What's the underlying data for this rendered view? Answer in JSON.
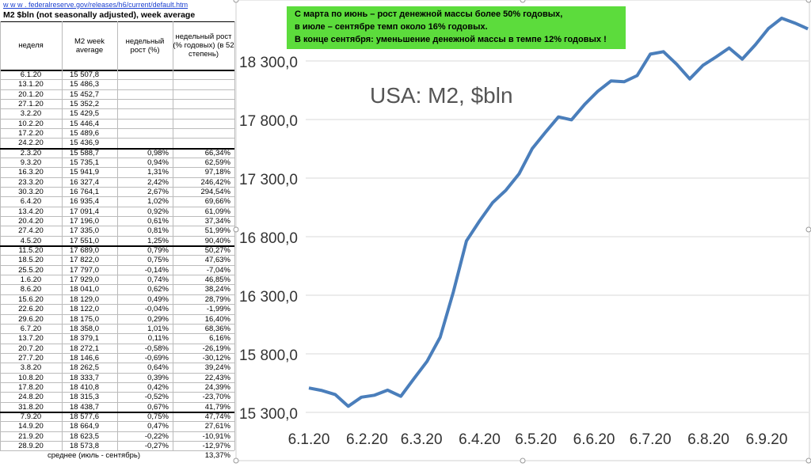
{
  "link": "w w w . federalreserve.gov/releases/h6/current/default.htm",
  "table": {
    "title": "M2 $bln (not seasonally adjusted), week average",
    "headers": [
      "неделя",
      "M2 week average",
      "недельный рост (%)",
      "недельный рост (% годовых) (в 52 степень)"
    ],
    "rows": [
      [
        "6.1.20",
        "15 507,8"
      ],
      [
        "13.1.20",
        "15 486,3"
      ],
      [
        "20.1.20",
        "15 452,7"
      ],
      [
        "27.1.20",
        "15 352,2"
      ],
      [
        "3.2.20",
        "15 429,5"
      ],
      [
        "10.2.20",
        "15 446,4"
      ],
      [
        "17.2.20",
        "15 489,6"
      ],
      [
        "24.2.20",
        "15 436,9"
      ],
      [
        "2.3.20",
        "15 588,7",
        "0,98%",
        "66,34%"
      ],
      [
        "9.3.20",
        "15 735,1",
        "0,94%",
        "62,59%"
      ],
      [
        "16.3.20",
        "15 941,9",
        "1,31%",
        "97,18%"
      ],
      [
        "23.3.20",
        "16 327,4",
        "2,42%",
        "246,42%"
      ],
      [
        "30.3.20",
        "16 764,1",
        "2,67%",
        "294,54%"
      ],
      [
        "6.4.20",
        "16 935,4",
        "1,02%",
        "69,66%"
      ],
      [
        "13.4.20",
        "17 091,4",
        "0,92%",
        "61,09%"
      ],
      [
        "20.4.20",
        "17 196,0",
        "0,61%",
        "37,34%"
      ],
      [
        "27.4.20",
        "17 335,0",
        "0,81%",
        "51,99%"
      ],
      [
        "4.5.20",
        "17 551,0",
        "1,25%",
        "90,40%"
      ],
      [
        "11.5.20",
        "17 689,0",
        "0,79%",
        "50,27%"
      ],
      [
        "18.5.20",
        "17 822,0",
        "0,75%",
        "47,63%"
      ],
      [
        "25.5.20",
        "17 797,0",
        "-0,14%",
        "-7,04%"
      ],
      [
        "1.6.20",
        "17 929,0",
        "0,74%",
        "46,85%"
      ],
      [
        "8.6.20",
        "18 041,0",
        "0,62%",
        "38,24%"
      ],
      [
        "15.6.20",
        "18 129,0",
        "0,49%",
        "28,79%"
      ],
      [
        "22.6.20",
        "18 122,0",
        "-0,04%",
        "-1,99%"
      ],
      [
        "29.6.20",
        "18 175,0",
        "0,29%",
        "16,40%"
      ],
      [
        "6.7.20",
        "18 358,0",
        "1,01%",
        "68,36%"
      ],
      [
        "13.7.20",
        "18 379,1",
        "0,11%",
        "6,16%"
      ],
      [
        "20.7.20",
        "18 272,1",
        "-0,58%",
        "-26,19%"
      ],
      [
        "27.7.20",
        "18 146,6",
        "-0,69%",
        "-30,12%"
      ],
      [
        "3.8.20",
        "18 262,5",
        "0,64%",
        "39,24%"
      ],
      [
        "10.8.20",
        "18 333,7",
        "0,39%",
        "22,43%"
      ],
      [
        "17.8.20",
        "18 410,8",
        "0,42%",
        "24,39%"
      ],
      [
        "24.8.20",
        "18 315,3",
        "-0,52%",
        "-23,70%"
      ],
      [
        "31.8.20",
        "18 438,7",
        "0,67%",
        "41,79%"
      ],
      [
        "7.9.20",
        "18 577,6",
        "0,75%",
        "47,74%"
      ],
      [
        "14.9.20",
        "18 664,9",
        "0,47%",
        "27,61%"
      ],
      [
        "21.9.20",
        "18 623,5",
        "-0,22%",
        "-10,91%"
      ],
      [
        "28.9.20",
        "18 573,8",
        "-0,27%",
        "-12,97%"
      ]
    ],
    "footer": {
      "label": "среднее (июль - сентябрь)",
      "value": "13,37%"
    }
  },
  "note": [
    "С марта по июнь – рост денежной массы более 50% годовых,",
    "в июле – сентябре темп около 16% годовых.",
    "В конце сентября: уменьшение денежной массы в темпе 12% годовых !"
  ],
  "chart_data": {
    "type": "line",
    "title": "USA: M2, $bln",
    "color": "#4a7ebb",
    "grid": true,
    "x": [
      "6.1.20",
      "13.1.20",
      "20.1.20",
      "27.1.20",
      "3.2.20",
      "10.2.20",
      "17.2.20",
      "24.2.20",
      "2.3.20",
      "9.3.20",
      "16.3.20",
      "23.3.20",
      "30.3.20",
      "6.4.20",
      "13.4.20",
      "20.4.20",
      "27.4.20",
      "4.5.20",
      "11.5.20",
      "18.5.20",
      "25.5.20",
      "1.6.20",
      "8.6.20",
      "15.6.20",
      "22.6.20",
      "29.6.20",
      "6.7.20",
      "13.7.20",
      "20.7.20",
      "27.7.20",
      "3.8.20",
      "10.8.20",
      "17.8.20",
      "24.8.20",
      "31.8.20",
      "7.9.20",
      "14.9.20",
      "21.9.20",
      "28.9.20"
    ],
    "values": [
      15507.8,
      15486.3,
      15452.7,
      15352.2,
      15429.5,
      15446.4,
      15489.6,
      15436.9,
      15588.7,
      15735.1,
      15941.9,
      16327.4,
      16764.1,
      16935.4,
      17091.4,
      17196.0,
      17335.0,
      17551.0,
      17689.0,
      17822.0,
      17797.0,
      17929.0,
      18041.0,
      18129.0,
      18122.0,
      18175.0,
      18358.0,
      18379.1,
      18272.1,
      18146.6,
      18262.5,
      18333.7,
      18410.8,
      18315.3,
      18438.7,
      18577.6,
      18664.9,
      18623.5,
      18573.8
    ],
    "xticks": [
      "6.1.20",
      "6.2.20",
      "6.3.20",
      "6.4.20",
      "6.5.20",
      "6.6.20",
      "6.7.20",
      "6.8.20",
      "6.9.20"
    ],
    "ylim": [
      15300,
      18800
    ],
    "yticks": [
      {
        "value": 15300,
        "label": "15 300,0"
      },
      {
        "value": 15800,
        "label": "15 800,0"
      },
      {
        "value": 16300,
        "label": "16 300,0"
      },
      {
        "value": 16800,
        "label": "16 800,0"
      },
      {
        "value": 17300,
        "label": "17 300,0"
      },
      {
        "value": 17800,
        "label": "17 800,0"
      },
      {
        "value": 18300,
        "label": "18 300,0"
      }
    ]
  }
}
